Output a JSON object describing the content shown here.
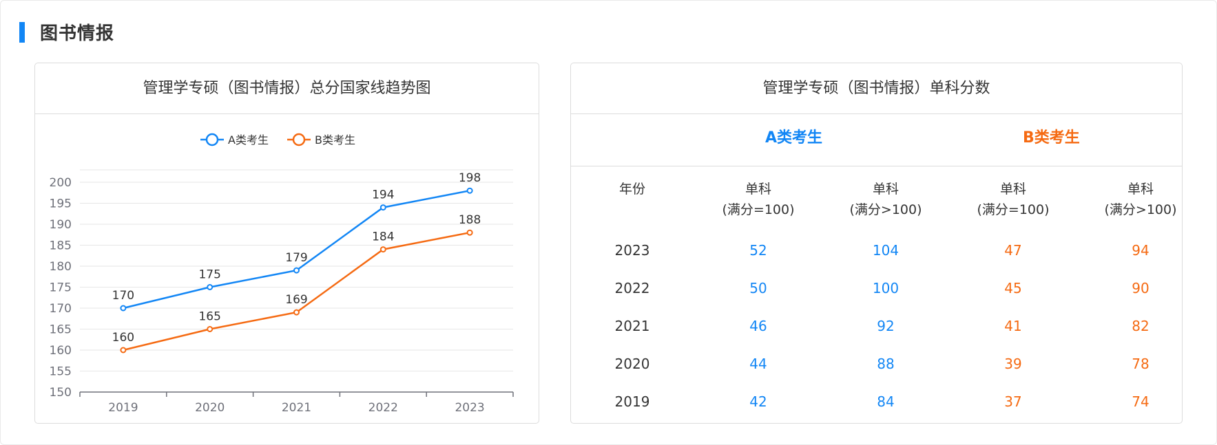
{
  "section": {
    "title": "图书情报"
  },
  "left_card": {
    "title": "管理学专硕（图书情报）总分国家线趋势图"
  },
  "right_card": {
    "title": "管理学专硕（图书情报）单科分数",
    "group_a": "A类考生",
    "group_b": "B类考生",
    "headers": [
      {
        "line1": "年份",
        "line2": ""
      },
      {
        "line1": "单科",
        "line2": "(满分=100)"
      },
      {
        "line1": "单科",
        "line2": "(满分>100)"
      },
      {
        "line1": "单科",
        "line2": "(满分=100)"
      },
      {
        "line1": "单科",
        "line2": "(满分>100)"
      }
    ],
    "rows": [
      {
        "year": "2023",
        "a100": "52",
        "a_over": "104",
        "b100": "47",
        "b_over": "94"
      },
      {
        "year": "2022",
        "a100": "50",
        "a_over": "100",
        "b100": "45",
        "b_over": "90"
      },
      {
        "year": "2021",
        "a100": "46",
        "a_over": "92",
        "b100": "41",
        "b_over": "82"
      },
      {
        "year": "2020",
        "a100": "44",
        "a_over": "88",
        "b100": "39",
        "b_over": "78"
      },
      {
        "year": "2019",
        "a100": "42",
        "a_over": "84",
        "b100": "37",
        "b_over": "74"
      }
    ]
  },
  "colors": {
    "accent": "#1286f5",
    "series_a": "#1286f5",
    "series_b": "#f56a12",
    "grid": "#e6e6e6",
    "axis": "#6e7079"
  },
  "chart_data": {
    "type": "line",
    "title": "管理学专硕（图书情报）总分国家线趋势图",
    "categories": [
      "2019",
      "2020",
      "2021",
      "2022",
      "2023"
    ],
    "series": [
      {
        "name": "A类考生",
        "color": "#1286f5",
        "values": [
          170,
          175,
          179,
          194,
          198
        ]
      },
      {
        "name": "B类考生",
        "color": "#f56a12",
        "values": [
          160,
          165,
          169,
          184,
          188
        ]
      }
    ],
    "yticks": [
      150,
      155,
      160,
      165,
      170,
      175,
      180,
      185,
      190,
      195,
      200
    ],
    "ylim": [
      150,
      200
    ],
    "legend_position": "top-center",
    "grid": true,
    "data_labels": true
  }
}
